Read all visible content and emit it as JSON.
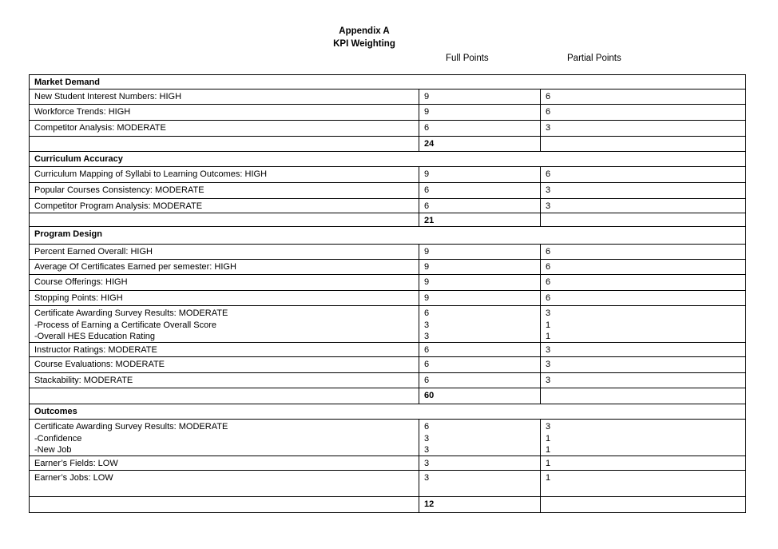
{
  "header": {
    "title_line1": "Appendix A",
    "title_line2": "KPI Weighting"
  },
  "columns": {
    "full": "Full Points",
    "partial": "Partial Points"
  },
  "colors": {
    "background": "#ffffff",
    "text": "#000000",
    "border": "#000000"
  },
  "sections": [
    {
      "header": "Market Demand",
      "rows": [
        {
          "label": "New Student Interest Numbers: HIGH",
          "full": "9",
          "partial": "6"
        },
        {
          "label": "Workforce Trends: HIGH",
          "full": "9",
          "partial": "6"
        },
        {
          "label": "Competitor Analysis: MODERATE",
          "full": "6",
          "partial": "3"
        }
      ],
      "subtotal": "24"
    },
    {
      "header": "Curriculum Accuracy",
      "rows": [
        {
          "label": "Curriculum Mapping of Syllabi to Learning Outcomes: HIGH",
          "full": "9",
          "partial": "6"
        },
        {
          "label": "Popular Courses Consistency: MODERATE",
          "full": "6",
          "partial": "3"
        },
        {
          "label": "Competitor Program Analysis: MODERATE",
          "full": "6",
          "partial": "3"
        }
      ],
      "subtotal": "21"
    },
    {
      "header": "Program Design",
      "rows": [
        {
          "label": "Percent Earned Overall: HIGH",
          "full": "9",
          "partial": "6"
        },
        {
          "label": "Average Of Certificates Earned per semester: HIGH",
          "full": "9",
          "partial": "6"
        },
        {
          "label": "Course Offerings: HIGH",
          "full": "9",
          "partial": "6"
        },
        {
          "label": "Stopping Points: HIGH",
          "full": "9",
          "partial": "6"
        },
        {
          "label": "Certificate Awarding Survey Results: MODERATE\n-Process of Earning a Certificate Overall Score\n-Overall HES Education Rating",
          "full": "6\n3\n3",
          "partial": "3\n1\n1"
        },
        {
          "label": "Instructor Ratings: MODERATE",
          "full": "6",
          "partial": "3"
        },
        {
          "label": "Course Evaluations: MODERATE",
          "full": "6",
          "partial": "3"
        },
        {
          "label": "Stackability: MODERATE",
          "full": "6",
          "partial": "3"
        }
      ],
      "subtotal": "60"
    },
    {
      "header": "Outcomes",
      "rows": [
        {
          "label": "Certificate Awarding Survey Results: MODERATE\n-Confidence\n-New Job",
          "full": "6\n3\n3",
          "partial": "3\n1\n1"
        },
        {
          "label": "Earner’s Fields: LOW",
          "full": "3",
          "partial": "1"
        },
        {
          "label": "Earner’s Jobs: LOW",
          "full": "3",
          "partial": "1"
        }
      ],
      "subtotal": "12"
    }
  ]
}
